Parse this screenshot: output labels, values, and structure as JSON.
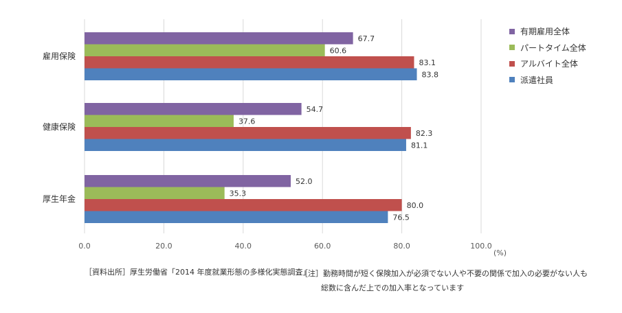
{
  "chart_data": {
    "type": "bar",
    "orientation": "horizontal",
    "categories": [
      "雇用保険",
      "健康保険",
      "厚生年金"
    ],
    "series": [
      {
        "name": "有期雇用全体",
        "color": "#8064a2",
        "values": [
          67.7,
          54.7,
          52.0
        ]
      },
      {
        "name": "パートタイム全体",
        "color": "#9bbb59",
        "values": [
          60.6,
          37.6,
          35.3
        ]
      },
      {
        "name": "アルバイト全体",
        "color": "#c0504d",
        "values": [
          83.1,
          82.3,
          80.0
        ]
      },
      {
        "name": "派遣社員",
        "color": "#4f81bd",
        "values": [
          83.8,
          81.1,
          76.5
        ]
      }
    ],
    "xlim": [
      0,
      100
    ],
    "xticks": [
      "0.0",
      "20.0",
      "40.0",
      "60.0",
      "80.0",
      "100.0"
    ],
    "unit": "(%)",
    "legend": "top-right",
    "grid": true
  },
  "source": "［資料出所］厚生労働省「2014 年度就業形態の多様化実態調査」",
  "note": {
    "line1": "［注］勤務時間が短く保険加入が必須でない人や不要の関係で加入の必要がない人も",
    "line2": "総数に含んだ上での加入率となっています"
  }
}
